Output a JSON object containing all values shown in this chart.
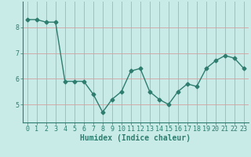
{
  "x": [
    0,
    1,
    2,
    3,
    4,
    5,
    6,
    7,
    8,
    9,
    10,
    11,
    12,
    13,
    14,
    15,
    16,
    17,
    18,
    19,
    20,
    21,
    22,
    23
  ],
  "y": [
    8.3,
    8.3,
    8.2,
    8.2,
    5.9,
    5.9,
    5.9,
    5.4,
    4.7,
    5.2,
    5.5,
    6.3,
    6.4,
    5.5,
    5.2,
    5.0,
    5.5,
    5.8,
    5.7,
    6.4,
    6.7,
    6.9,
    6.8,
    6.4
  ],
  "xlabel": "Humidex (Indice chaleur)",
  "line_color": "#2e7d6e",
  "bg_color": "#c8ebe8",
  "grid_color": "#d4a0a0",
  "ylim": [
    4.3,
    9.0
  ],
  "xlim": [
    -0.5,
    23.5
  ],
  "yticks": [
    5,
    6,
    7,
    8
  ],
  "xticks": [
    0,
    1,
    2,
    3,
    4,
    5,
    6,
    7,
    8,
    9,
    10,
    11,
    12,
    13,
    14,
    15,
    16,
    17,
    18,
    19,
    20,
    21,
    22,
    23
  ],
  "xlabel_fontsize": 7,
  "tick_fontsize": 6,
  "marker": "D",
  "marker_size": 2.5,
  "line_width": 1.0
}
